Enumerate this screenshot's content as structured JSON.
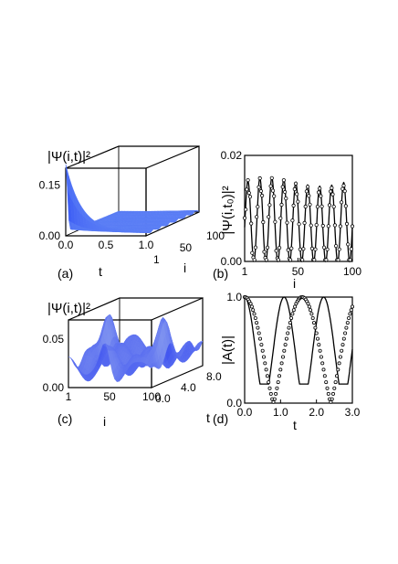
{
  "chart_data": [
    {
      "panel": "(a)",
      "type": "surface3d",
      "zlabel": "|Ψ(i,t)|²",
      "xlabel": "t",
      "ylabel": "i",
      "x_ticks": [
        "0.0",
        "0.5",
        "1.0"
      ],
      "y_ticks": [
        "1",
        "50",
        "100"
      ],
      "z_ticks": [
        "0.00",
        "0.15"
      ],
      "xlim": [
        0,
        1
      ],
      "ylim": [
        1,
        100
      ],
      "zlim": [
        0,
        0.2
      ],
      "surface_color": "#4a6cf0",
      "description_values": {
        "peak_value": 0.2,
        "peak_t": 0.0,
        "peak_i": 1
      }
    },
    {
      "panel": "(b)",
      "type": "line",
      "ylabel": "|Ψ(i,t₀)|²",
      "xlabel": "i",
      "x_ticks": [
        "1",
        "50",
        "100"
      ],
      "y_ticks": [
        "0.00",
        "0.02"
      ],
      "xlim": [
        1,
        100
      ],
      "ylim": [
        0,
        0.02
      ],
      "oscillation_period": 11,
      "amplitude_max": 0.016,
      "marker": "circle"
    },
    {
      "panel": "(c)",
      "type": "surface3d",
      "zlabel": "|Ψ(i,t)|²",
      "xlabel": "i",
      "ylabel": "t",
      "x_ticks": [
        "1",
        "50",
        "100"
      ],
      "y_ticks": [
        "0.0",
        "4.0",
        "8.0"
      ],
      "z_ticks": [
        "0.00",
        "0.05"
      ],
      "xlim": [
        1,
        100
      ],
      "ylim": [
        0,
        8
      ],
      "zlim": [
        0,
        0.07
      ],
      "surface_color": "#4a6cf0"
    },
    {
      "panel": "(d)",
      "type": "line",
      "ylabel": "|A(t)|",
      "xlabel": "t",
      "x_ticks": [
        "0.0",
        "1.0",
        "2.0",
        "3.0"
      ],
      "y_ticks": [
        "0.0",
        "1.0"
      ],
      "xlim": [
        0,
        3
      ],
      "ylim": [
        0,
        1
      ],
      "line_period": 1.1,
      "dots_period": 1.6,
      "marker": "circle"
    }
  ]
}
